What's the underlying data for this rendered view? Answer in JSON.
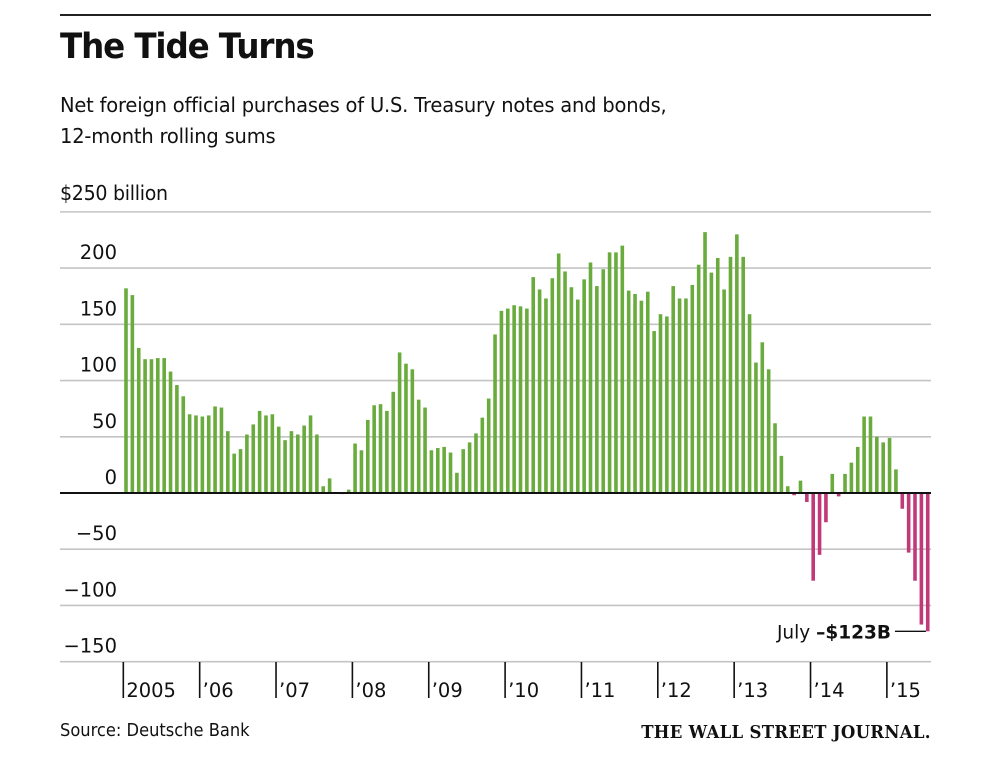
{
  "header": {
    "title": "The Tide Turns",
    "subtitle_line1": "Net foreign official purchases of U.S. Treasury notes and bonds,",
    "subtitle_line2": "12-month rolling sums",
    "unit_label": "$250 billion"
  },
  "footer": {
    "source": "Source: Deutsche Bank",
    "brand": "THE WALL STREET JOURNAL."
  },
  "colors": {
    "positive": "#6aab3e",
    "negative": "#c2397a",
    "gridline": "#c4c4c4",
    "zero_line": "#111111"
  },
  "chart_data": {
    "type": "bar",
    "title": "The Tide Turns",
    "subtitle": "Net foreign official purchases of U.S. Treasury notes and bonds, 12-month rolling sums",
    "xlabel": "",
    "ylabel": "$ billion",
    "ylim": [
      -150,
      250
    ],
    "yticks": [
      250,
      200,
      150,
      100,
      50,
      0,
      -50,
      -100,
      -150
    ],
    "ytick_labels": [
      "$250 billion",
      "200",
      "150",
      "100",
      "50",
      "0",
      "−50",
      "−100",
      "−150"
    ],
    "grid": true,
    "frequency": "monthly",
    "start": "2005-01",
    "end": "2015-07",
    "xtick_labels": [
      "2005",
      "’06",
      "’07",
      "’08",
      "’09",
      "’10",
      "’11",
      "’12",
      "’13",
      "’14",
      "’15"
    ],
    "values": [
      182,
      176,
      129,
      119,
      119,
      120,
      120,
      108,
      96,
      86,
      70,
      69,
      68,
      69,
      77,
      76,
      55,
      35,
      39,
      52,
      61,
      73,
      69,
      70,
      59,
      47,
      55,
      52,
      60,
      69,
      52,
      6,
      13,
      0,
      -1,
      3,
      44,
      38,
      65,
      78,
      79,
      73,
      90,
      125,
      115,
      110,
      83,
      76,
      38,
      40,
      41,
      36,
      18,
      39,
      45,
      53,
      67,
      84,
      141,
      162,
      164,
      167,
      166,
      164,
      192,
      181,
      173,
      191,
      213,
      197,
      183,
      172,
      190,
      205,
      184,
      199,
      214,
      214,
      220,
      180,
      177,
      171,
      179,
      144,
      159,
      157,
      184,
      173,
      173,
      185,
      203,
      232,
      196,
      209,
      181,
      210,
      230,
      210,
      159,
      116,
      134,
      110,
      62,
      33,
      6,
      -2,
      11,
      -8,
      -78,
      -55,
      -26,
      17,
      -3,
      17,
      27,
      41,
      68,
      68,
      50,
      45,
      49,
      21,
      -14,
      -53,
      -78,
      -117,
      -123
    ],
    "annotations": [
      {
        "month": "2015-07",
        "label_prefix": "July ",
        "label_value": "–$123B",
        "value": -123
      }
    ]
  }
}
